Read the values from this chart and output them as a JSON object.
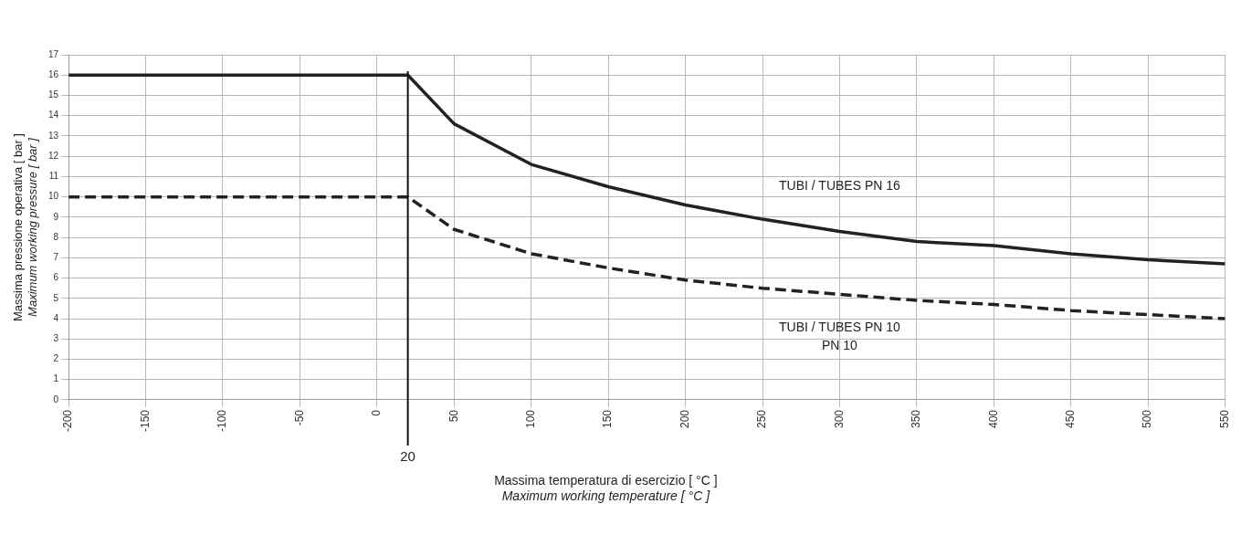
{
  "chart_data": {
    "type": "line",
    "xlabel": "Massima temperatura di esercizio [ °C ]\nMaximum working temperature [ °C ]",
    "ylabel": "Massima pressione operativa [ bar ]\nMaximum working pressure [ bar ]",
    "x": [
      -200,
      20,
      50,
      100,
      150,
      200,
      250,
      300,
      350,
      400,
      450,
      500,
      550
    ],
    "series": [
      {
        "name": "TUBI / TUBES PN 16",
        "color": "#222222",
        "line_style": "solid",
        "values": [
          16,
          16,
          13.6,
          11.6,
          10.5,
          9.6,
          8.9,
          8.3,
          7.8,
          7.6,
          7.2,
          6.9,
          6.7
        ]
      },
      {
        "name": "TUBI / TUBES PN 10",
        "color": "#222222",
        "line_style": "dashed",
        "values": [
          10,
          10,
          8.4,
          7.2,
          6.5,
          5.9,
          5.5,
          5.2,
          4.9,
          4.7,
          4.4,
          4.2,
          4.0
        ]
      }
    ],
    "annotations": [
      "PN 10"
    ],
    "ref_lines": [
      {
        "axis": "x",
        "value": 20,
        "label": "20",
        "color": "#111111"
      }
    ],
    "xlim": [
      -200,
      550
    ],
    "xticks": [
      -200,
      -150,
      -100,
      -50,
      0,
      50,
      100,
      150,
      200,
      250,
      300,
      350,
      400,
      450,
      500,
      550
    ],
    "ylim": [
      0,
      17
    ],
    "yticks": [
      0,
      1,
      2,
      3,
      4,
      5,
      6,
      7,
      8,
      9,
      10,
      11,
      12,
      13,
      14,
      15,
      16,
      17
    ],
    "grid": true,
    "legend": false,
    "marker": "none"
  }
}
